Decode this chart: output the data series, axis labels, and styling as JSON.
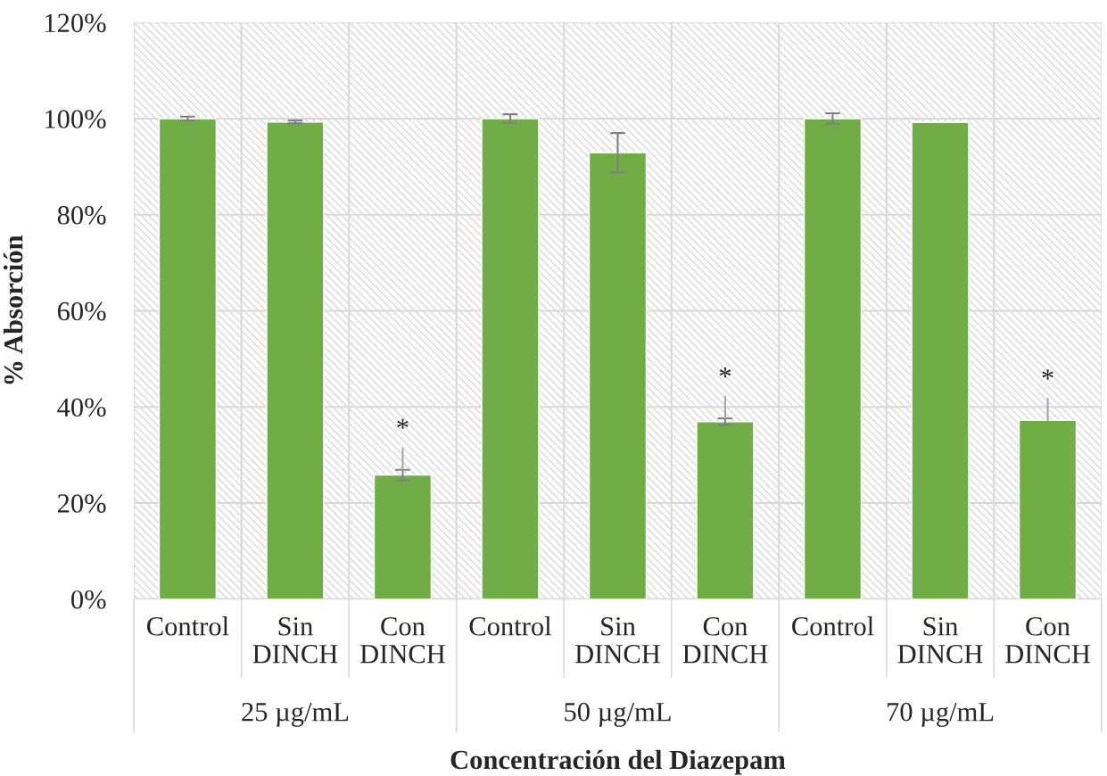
{
  "chart_data": {
    "type": "bar",
    "xlabel": "Concentración del Diazepam",
    "ylabel": "% Absorción",
    "categories": [
      "Control",
      "Sin\nDINCH",
      "Con\nDINCH",
      "Control",
      "Sin\nDINCH",
      "Con\nDINCH",
      "Control",
      "Sin\nDINCH",
      "Con\nDINCH"
    ],
    "values": [
      100,
      99.3,
      25.8,
      100,
      92.9,
      36.9,
      100,
      99.2,
      37.2
    ],
    "errors": [
      0.4,
      0.3,
      1.1,
      0.9,
      4.1,
      0.7,
      1.1,
      null,
      null
    ],
    "value_labels": [
      null,
      null,
      "*",
      null,
      null,
      "*",
      null,
      null,
      "*"
    ],
    "color": "#70ad47",
    "ylim": [
      0,
      120
    ],
    "yticks": [
      {
        "value": 0,
        "label": "0%"
      },
      {
        "value": 20,
        "label": "20%"
      },
      {
        "value": 40,
        "label": "40%"
      },
      {
        "value": 60,
        "label": "60%"
      },
      {
        "value": 80,
        "label": "80%"
      },
      {
        "value": 100,
        "label": "100%"
      },
      {
        "value": 120,
        "label": "120%"
      }
    ],
    "grid": true,
    "annotations": [
      "25 µg/mL",
      "50 µg/mL",
      "70 µg/mL"
    ]
  }
}
